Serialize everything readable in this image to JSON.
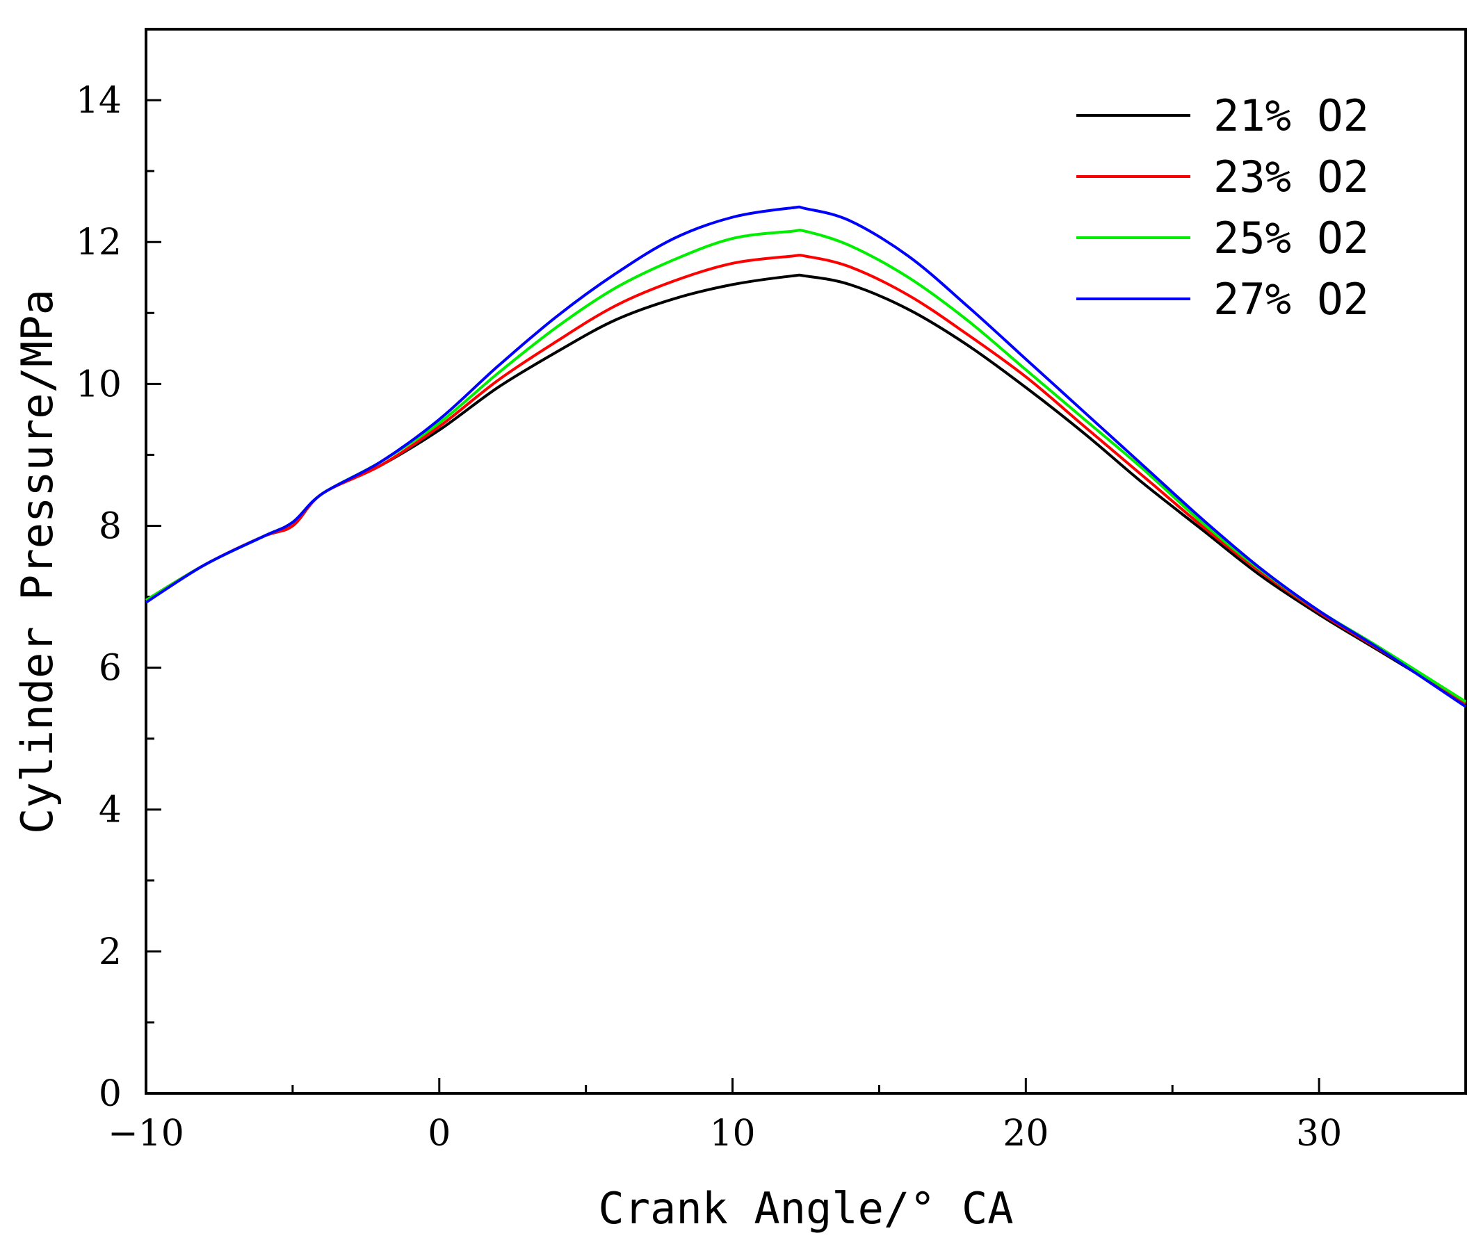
{
  "chart_data": {
    "type": "line",
    "title": "",
    "xlabel": "Crank Angle/° CA",
    "ylabel": "Cylinder Pressure/MPa",
    "xlim": [
      -10,
      35
    ],
    "ylim": [
      0,
      15
    ],
    "xticks": [
      -10,
      0,
      10,
      20,
      30
    ],
    "xtick_labels": [
      "−10",
      "0",
      "10",
      "20",
      "30"
    ],
    "yticks": [
      0,
      2,
      4,
      6,
      8,
      10,
      12,
      14
    ],
    "ytick_labels": [
      "0",
      "2",
      "4",
      "6",
      "8",
      "10",
      "12",
      "14"
    ],
    "grid": false,
    "legend_position": "top-right",
    "x": [
      -10,
      -8,
      -6,
      -5,
      -4,
      -2,
      0,
      2,
      4,
      6,
      8,
      10,
      12,
      12.5,
      14,
      16,
      18,
      20,
      22,
      24,
      26,
      28,
      30,
      32,
      35
    ],
    "series": [
      {
        "name": "21% O2",
        "color": "#000000",
        "values": [
          6.95,
          7.45,
          7.85,
          8.0,
          8.45,
          8.85,
          9.35,
          9.95,
          10.45,
          10.9,
          11.2,
          11.4,
          11.52,
          11.52,
          11.4,
          11.05,
          10.55,
          9.95,
          9.3,
          8.6,
          7.95,
          7.3,
          6.75,
          6.25,
          5.5
        ]
      },
      {
        "name": "23% O2",
        "color": "#ff0000",
        "values": [
          6.95,
          7.45,
          7.85,
          8.0,
          8.45,
          8.85,
          9.4,
          10.05,
          10.6,
          11.1,
          11.45,
          11.7,
          11.8,
          11.8,
          11.65,
          11.25,
          10.7,
          10.1,
          9.4,
          8.7,
          8.0,
          7.35,
          6.78,
          6.27,
          5.5
        ]
      },
      {
        "name": "25% O2",
        "color": "#00ee00",
        "values": [
          6.95,
          7.45,
          7.85,
          8.05,
          8.45,
          8.9,
          9.45,
          10.15,
          10.8,
          11.35,
          11.75,
          12.05,
          12.15,
          12.15,
          11.95,
          11.5,
          10.9,
          10.2,
          9.5,
          8.8,
          8.05,
          7.38,
          6.8,
          6.3,
          5.52
        ]
      },
      {
        "name": "27% O2",
        "color": "#0000ff",
        "values": [
          6.92,
          7.45,
          7.85,
          8.05,
          8.45,
          8.9,
          9.5,
          10.25,
          10.95,
          11.55,
          12.05,
          12.35,
          12.48,
          12.47,
          12.3,
          11.8,
          11.1,
          10.35,
          9.6,
          8.85,
          8.1,
          7.4,
          6.8,
          6.28,
          5.45
        ]
      }
    ]
  }
}
